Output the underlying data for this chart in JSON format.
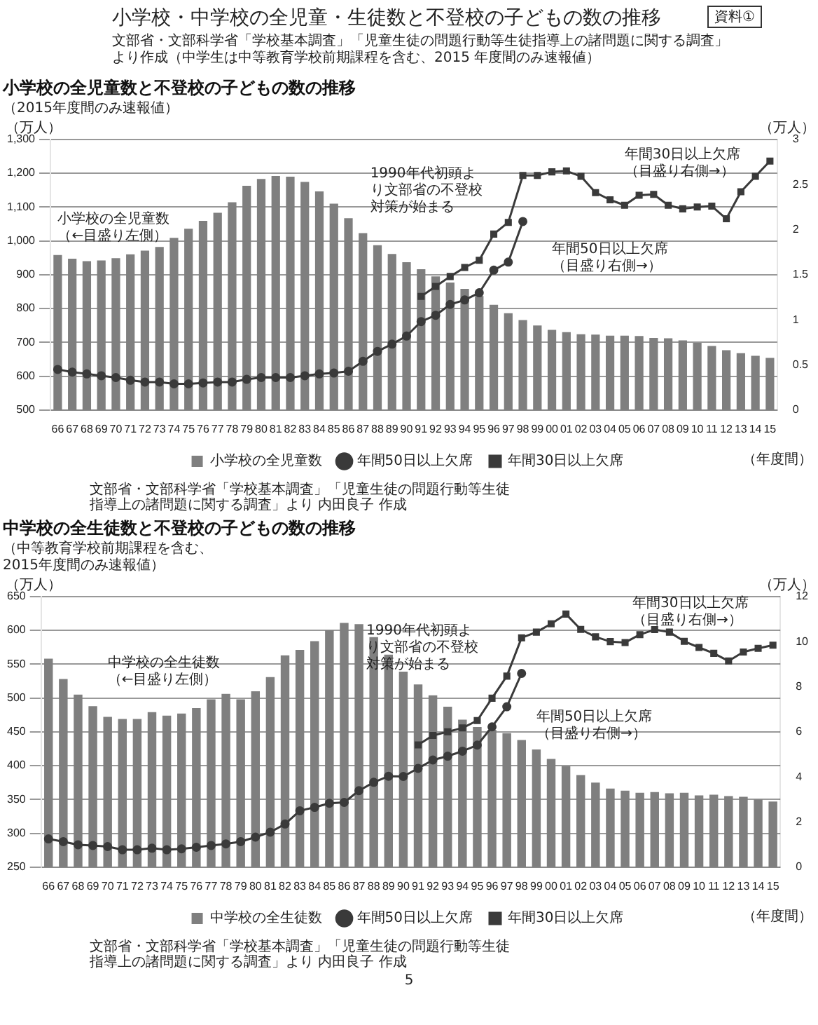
{
  "chart_data": [
    {
      "type": "bar",
      "title": "小学校の全児童数と不登校の子どもの数の推移",
      "subtitle": "（2015年度間のみ速報値）",
      "xlabel": "（年度間）",
      "ylabel": "（万人）",
      "y2label": "（万人）",
      "categories": [
        "66",
        "67",
        "68",
        "69",
        "70",
        "71",
        "72",
        "73",
        "74",
        "75",
        "76",
        "77",
        "78",
        "79",
        "80",
        "81",
        "82",
        "83",
        "84",
        "85",
        "86",
        "87",
        "88",
        "89",
        "90",
        "91",
        "92",
        "93",
        "94",
        "95",
        "96",
        "97",
        "98",
        "99",
        "00",
        "01",
        "02",
        "03",
        "04",
        "05",
        "06",
        "07",
        "08",
        "09",
        "10",
        "11",
        "12",
        "13",
        "14",
        "15"
      ],
      "series": [
        {
          "name": "小学校の全児童数",
          "color": "#7f7f7f",
          "values": [
            958,
            947,
            940,
            942,
            949,
            960,
            971,
            982,
            1009,
            1036,
            1059,
            1083,
            1114,
            1163,
            1183,
            1192,
            1190,
            1174,
            1146,
            1110,
            1067,
            1023,
            987,
            961,
            937,
            916,
            895,
            877,
            858,
            837,
            811,
            786,
            766,
            750,
            737,
            730,
            724,
            723,
            720,
            720,
            719,
            713,
            712,
            706,
            699,
            689,
            677,
            668,
            660,
            654
          ]
        },
        {
          "name": "年間50日以上欠席",
          "type": "line",
          "axis": "y2",
          "marker": "circle",
          "color": "#3a3a3a",
          "values": [
            0.45,
            0.42,
            0.4,
            0.38,
            0.36,
            0.33,
            0.31,
            0.31,
            0.29,
            0.29,
            0.3,
            0.31,
            0.31,
            0.34,
            0.36,
            0.36,
            0.36,
            0.38,
            0.4,
            0.41,
            0.43,
            0.54,
            0.65,
            0.73,
            0.82,
            0.98,
            1.05,
            1.17,
            1.22,
            1.3,
            1.55,
            1.64,
            2.09,
            null,
            null,
            null,
            null,
            null,
            null,
            null,
            null,
            null,
            null,
            null,
            null,
            null,
            null,
            null,
            null,
            null
          ]
        },
        {
          "name": "年間30日以上欠席",
          "type": "line",
          "axis": "y2",
          "marker": "square",
          "color": "#3a3a3a",
          "values": [
            null,
            null,
            null,
            null,
            null,
            null,
            null,
            null,
            null,
            null,
            null,
            null,
            null,
            null,
            null,
            null,
            null,
            null,
            null,
            null,
            null,
            null,
            null,
            null,
            null,
            1.26,
            1.37,
            1.48,
            1.58,
            1.66,
            1.95,
            2.08,
            2.6,
            2.6,
            2.64,
            2.65,
            2.59,
            2.41,
            2.33,
            2.27,
            2.38,
            2.39,
            2.27,
            2.23,
            2.25,
            2.26,
            2.12,
            2.42,
            2.59,
            2.76
          ]
        }
      ],
      "ylim": [
        500,
        1300
      ],
      "yticks": [
        500,
        600,
        700,
        800,
        900,
        {
          "value": 1000,
          "label": "1,000"
        },
        {
          "value": 1100,
          "label": "1,100"
        },
        {
          "value": 1200,
          "label": "1,200"
        },
        {
          "value": 1300,
          "label": "1,300"
        }
      ],
      "y2lim": [
        0,
        3
      ],
      "y2ticks": [
        0,
        0.5,
        1,
        1.5,
        2,
        2.5,
        3
      ],
      "grid": "y",
      "legend": "bottom",
      "annotations": [
        "小学校・中学校の全児童・生徒数と不登校の子どもの数の推移",
        "資料①",
        "文部省・文部科学省「学校基本調査」「児童生徒の問題行動等生徒指導上の諸問題に関する調査」より作成（中学生は中等教育学校前期課程を含む、2015 年度間のみ速報値）",
        "文部省・文部科学省「学校基本調査」「児童生徒の問題行動等生徒指導上の諸問題に関する調査」より 内田良子 作成",
        "小学校の全児童数（←目盛り左側）",
        "1990年代初頭より文部省の不登校対策が始まる",
        "年間50日以上欠席（目盛り右側→）",
        "年間30日以上欠席（目盛り右側→）"
      ]
    },
    {
      "type": "bar",
      "title": "中学校の全生徒数と不登校の子どもの数の推移",
      "subtitle": "（中等教育学校前期課程を含む、\n2015年度間のみ速報値）",
      "xlabel": "（年度間）",
      "ylabel": "（万人）",
      "y2label": "（万人）",
      "categories": [
        "66",
        "67",
        "68",
        "69",
        "70",
        "71",
        "72",
        "73",
        "74",
        "75",
        "76",
        "77",
        "78",
        "79",
        "80",
        "81",
        "82",
        "83",
        "84",
        "85",
        "86",
        "87",
        "88",
        "89",
        "90",
        "91",
        "92",
        "93",
        "94",
        "95",
        "96",
        "97",
        "98",
        "99",
        "00",
        "01",
        "02",
        "03",
        "04",
        "05",
        "06",
        "07",
        "08",
        "09",
        "10",
        "11",
        "12",
        "13",
        "14",
        "15"
      ],
      "series": [
        {
          "name": "中学校の全生徒数",
          "color": "#7f7f7f",
          "values": [
            558,
            528,
            505,
            488,
            472,
            469,
            469,
            479,
            474,
            477,
            485,
            498,
            506,
            498,
            510,
            531,
            563,
            571,
            584,
            600,
            611,
            609,
            590,
            564,
            539,
            520,
            504,
            487,
            468,
            457,
            453,
            448,
            438,
            424,
            410,
            399,
            386,
            375,
            366,
            363,
            360,
            361,
            359,
            360,
            356,
            357,
            355,
            354,
            350,
            347
          ]
        },
        {
          "name": "年間50日以上欠席",
          "type": "line",
          "axis": "y2",
          "marker": "circle",
          "color": "#3a3a3a",
          "values": [
            1.25,
            1.13,
            0.99,
            0.96,
            0.91,
            0.77,
            0.77,
            0.84,
            0.77,
            0.81,
            0.88,
            0.96,
            1.03,
            1.13,
            1.33,
            1.55,
            1.91,
            2.5,
            2.65,
            2.83,
            2.87,
            3.39,
            3.76,
            4.03,
            4.02,
            4.38,
            4.75,
            4.92,
            5.14,
            5.41,
            6.22,
            7.11,
            8.59,
            null,
            null,
            null,
            null,
            null,
            null,
            null,
            null,
            null,
            null,
            null,
            null,
            null,
            null,
            null,
            null,
            null
          ]
        },
        {
          "name": "年間30日以上欠席",
          "type": "line",
          "axis": "y2",
          "marker": "square",
          "color": "#3a3a3a",
          "values": [
            null,
            null,
            null,
            null,
            null,
            null,
            null,
            null,
            null,
            null,
            null,
            null,
            null,
            null,
            null,
            null,
            null,
            null,
            null,
            null,
            null,
            null,
            null,
            null,
            null,
            5.42,
            5.84,
            6.0,
            6.17,
            6.5,
            7.49,
            8.47,
            10.17,
            10.42,
            10.79,
            11.22,
            10.54,
            10.21,
            10.0,
            9.96,
            10.31,
            10.53,
            10.42,
            10.01,
            9.74,
            9.48,
            9.14,
            9.54,
            9.7,
            9.84
          ]
        }
      ],
      "ylim": [
        250,
        650
      ],
      "yticks": [
        250,
        300,
        350,
        400,
        450,
        500,
        550,
        600,
        650
      ],
      "y2lim": [
        0,
        12
      ],
      "y2ticks": [
        0,
        2,
        4,
        6,
        8,
        10,
        12
      ],
      "grid": "y",
      "legend": "bottom",
      "annotations": [
        "文部省・文部科学省「学校基本調査」「児童生徒の問題行動等生徒指導上の諸問題に関する調査」より 内田良子 作成",
        "5",
        "中学校の全生徒数（←目盛り左側）",
        "1990年代初頭より文部省の不登校対策が始まる",
        "年間50日以上欠席（目盛り右側→）",
        "年間30日以上欠席（目盛り右側→）"
      ]
    }
  ]
}
